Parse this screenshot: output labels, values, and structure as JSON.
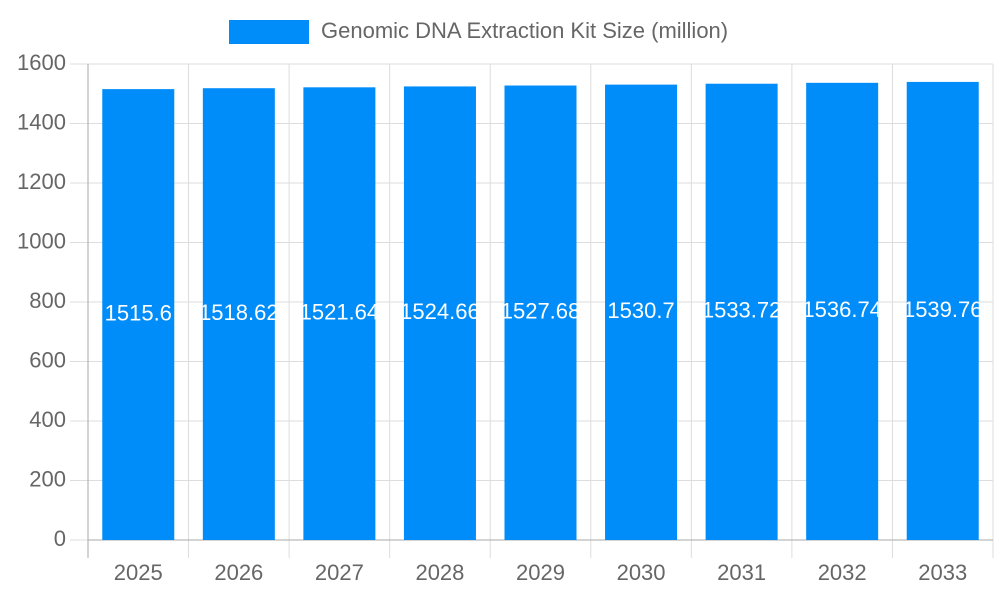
{
  "chart_data": {
    "type": "bar",
    "categories": [
      "2025",
      "2026",
      "2027",
      "2028",
      "2029",
      "2030",
      "2031",
      "2032",
      "2033"
    ],
    "series": [
      {
        "name": "Genomic DNA Extraction Kit Size (million)",
        "color": "#008cf9",
        "values": [
          1515.6,
          1518.62,
          1521.64,
          1524.66,
          1527.68,
          1530.7,
          1533.72,
          1536.74,
          1539.76
        ]
      }
    ],
    "ylim": [
      0,
      1600
    ],
    "yticks": [
      0,
      200,
      400,
      600,
      800,
      1000,
      1200,
      1400,
      1600
    ],
    "grid": true,
    "legend": "top"
  }
}
